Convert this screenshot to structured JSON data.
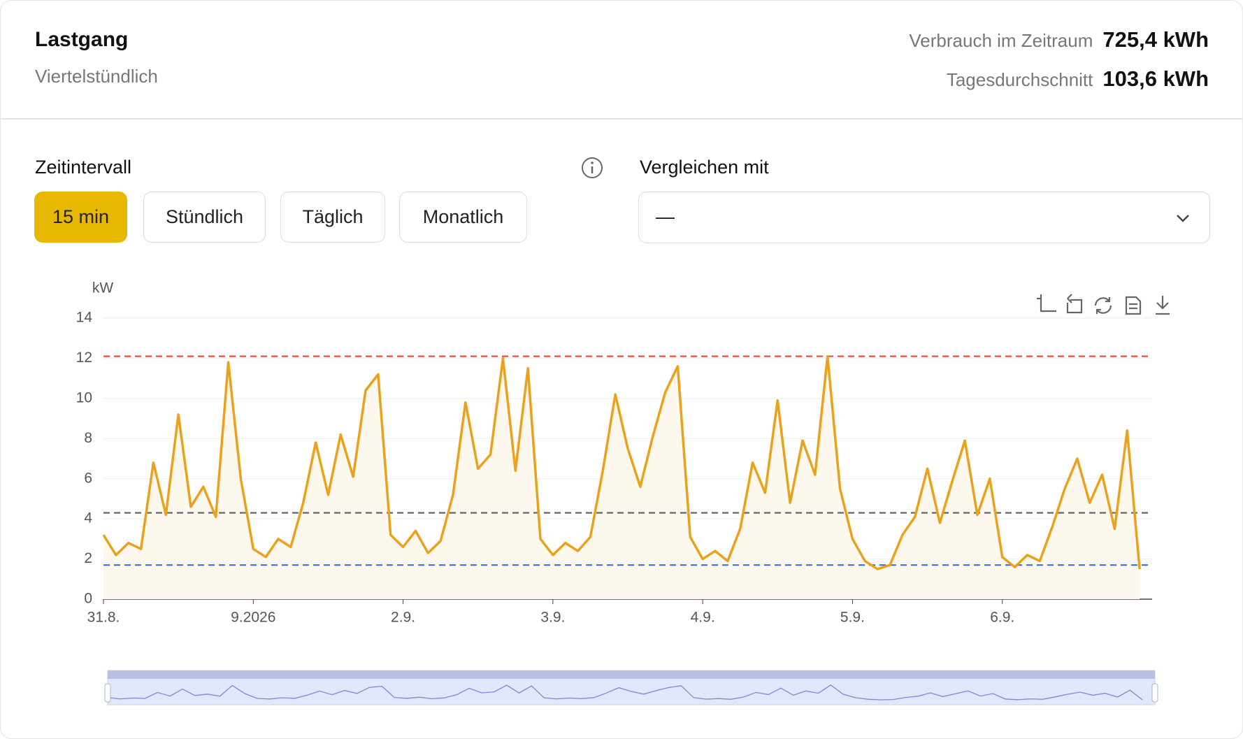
{
  "header": {
    "title": "Lastgang",
    "subtitle": "Viertelstündlich",
    "stats": [
      {
        "label": "Verbrauch im Zeitraum",
        "value": "725,4 kWh"
      },
      {
        "label": "Tagesdurchschnitt",
        "value": "103,6 kWh"
      }
    ]
  },
  "controls": {
    "interval_label": "Zeitintervall",
    "options": [
      "15 min",
      "Stündlich",
      "Täglich",
      "Monatlich"
    ],
    "compare_label": "Vergleichen mit",
    "compare_value": "—"
  },
  "chart_data": {
    "type": "line",
    "y_label": "kW",
    "color": "#eaa21c",
    "fill": "#fdf8ee",
    "categories": [
      "31.8.",
      null,
      null,
      null,
      null,
      null,
      null,
      null,
      null,
      null,
      null,
      null,
      "9.2026",
      null,
      null,
      null,
      null,
      null,
      null,
      null,
      null,
      null,
      null,
      null,
      "2.9.",
      null,
      null,
      null,
      null,
      null,
      null,
      null,
      null,
      null,
      null,
      null,
      "3.9.",
      null,
      null,
      null,
      null,
      null,
      null,
      null,
      null,
      null,
      null,
      null,
      "4.9.",
      null,
      null,
      null,
      null,
      null,
      null,
      null,
      null,
      null,
      null,
      null,
      "5.9.",
      null,
      null,
      null,
      null,
      null,
      null,
      null,
      null,
      null,
      null,
      null,
      "6.9.",
      null,
      null,
      null,
      null,
      null,
      null,
      null,
      null,
      null,
      null,
      null
    ],
    "values": [
      3.2,
      2.2,
      2.8,
      2.5,
      6.8,
      4.2,
      9.2,
      4.6,
      5.6,
      4.1,
      11.8,
      6.0,
      2.5,
      2.1,
      3.0,
      2.6,
      4.8,
      7.8,
      5.2,
      8.2,
      6.1,
      10.4,
      11.2,
      3.2,
      2.6,
      3.4,
      2.3,
      2.9,
      5.2,
      9.8,
      6.5,
      7.2,
      12.0,
      6.4,
      11.5,
      3.0,
      2.2,
      2.8,
      2.4,
      3.1,
      6.4,
      10.2,
      7.5,
      5.6,
      8.1,
      10.3,
      11.6,
      3.1,
      2.0,
      2.4,
      1.9,
      3.5,
      6.8,
      5.3,
      9.9,
      4.8,
      7.9,
      6.2,
      12.1,
      5.5,
      3.0,
      1.9,
      1.5,
      1.7,
      3.2,
      4.1,
      6.5,
      3.8,
      5.9,
      7.9,
      4.2,
      6.0,
      2.1,
      1.6,
      2.2,
      1.9,
      3.6,
      5.5,
      7.0,
      4.8,
      6.2,
      3.5,
      8.4,
      1.5
    ],
    "ref_lines": [
      {
        "value": 12.1,
        "color": "#e8453c"
      },
      {
        "value": 4.3,
        "color": "#666666"
      },
      {
        "value": 1.7,
        "color": "#3b6fe0"
      }
    ],
    "ylim": [
      0,
      14
    ],
    "yticks": [
      0,
      2,
      4,
      6,
      8,
      10,
      12,
      14
    ],
    "grid": true
  }
}
